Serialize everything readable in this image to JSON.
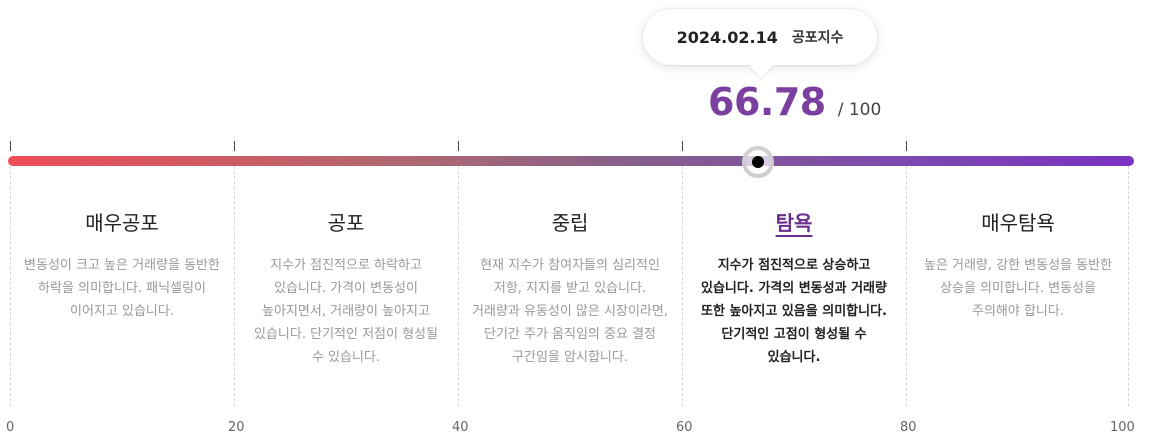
{
  "tooltip": {
    "date": "2024.02.14",
    "title": "공포지수"
  },
  "score": {
    "value": 66.78,
    "value_label": "66.78",
    "max_label": "/ 100"
  },
  "scale": {
    "min": 0,
    "max": 100,
    "labels": [
      "0",
      "20",
      "40",
      "60",
      "80",
      "100"
    ]
  },
  "colors": {
    "accent": "#7b3fa0",
    "bar_start": "#ef4d57",
    "bar_end": "#7a32c2"
  },
  "zones": [
    {
      "name": "매우공포",
      "desc": "변동성이 크고 높은 거래량을 동반한 하락을 의미합니다. 패닉셀링이 이어지고 있습니다."
    },
    {
      "name": "공포",
      "desc": "지수가 점진적으로 하락하고 있습니다. 가격이 변동성이 높아지면서, 거래량이 높아지고 있습니다. 단기적인 저점이 형성될 수 있습니다."
    },
    {
      "name": "중립",
      "desc": "현재 지수가 참여자들의 심리적인 저항, 지지를 받고 있습니다. 거래량과 유동성이 많은 시장이라면, 단기간 주가 움직임의 중요 결정 구간임을 암시합니다."
    },
    {
      "name": "탐욕",
      "desc": "지수가 점진적으로 상승하고 있습니다. 가격의 변동성과 거래량 또한 높아지고 있음을 의미합니다. 단기적인 고점이 형성될 수 있습니다.",
      "active": true
    },
    {
      "name": "매우탐욕",
      "desc": "높은 거래량, 강한 변동성을 동반한 상승을 의미합니다. 변동성을 주의해야 합니다."
    }
  ]
}
